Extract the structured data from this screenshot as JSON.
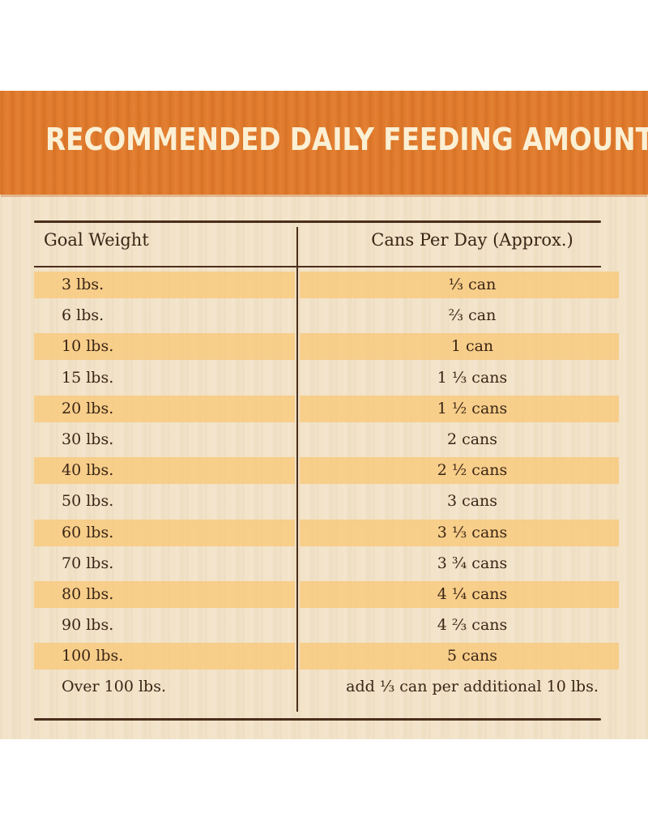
{
  "title": "RECOMMENDED DAILY FEEDING AMOUNTS:",
  "table": {
    "headers": {
      "weight": "Goal Weight",
      "cans": "Cans Per Day (Approx.)"
    },
    "rows": [
      {
        "weight": "3 lbs.",
        "cans": "⅓ can",
        "striped": true
      },
      {
        "weight": "6 lbs.",
        "cans": "⅔ can",
        "striped": false
      },
      {
        "weight": "10 lbs.",
        "cans": "1 can",
        "striped": true
      },
      {
        "weight": "15 lbs.",
        "cans": "1 ⅓ cans",
        "striped": false
      },
      {
        "weight": "20 lbs.",
        "cans": "1 ½ cans",
        "striped": true
      },
      {
        "weight": "30 lbs.",
        "cans": "2 cans",
        "striped": false
      },
      {
        "weight": "40 lbs.",
        "cans": "2 ½ cans",
        "striped": true
      },
      {
        "weight": "50 lbs.",
        "cans": "3 cans",
        "striped": false
      },
      {
        "weight": "60 lbs.",
        "cans": "3 ⅓ cans",
        "striped": true
      },
      {
        "weight": "70 lbs.",
        "cans": "3 ¾ cans",
        "striped": false
      },
      {
        "weight": "80 lbs.",
        "cans": "4 ¼ cans",
        "striped": true
      },
      {
        "weight": "90 lbs.",
        "cans": "4 ⅔ cans",
        "striped": false
      },
      {
        "weight": "100 lbs.",
        "cans": "5 cans",
        "striped": true
      },
      {
        "weight": "Over 100 lbs.",
        "cans": "add ⅓ can per additional 10 lbs.",
        "striped": false
      }
    ]
  },
  "colors": {
    "header_orange": "#e07a2c",
    "title_cream": "#fbf0d4",
    "text_brown": "#3a2515",
    "stripe_peach": "#f8c878",
    "wood_light": "#f2e3c9"
  }
}
